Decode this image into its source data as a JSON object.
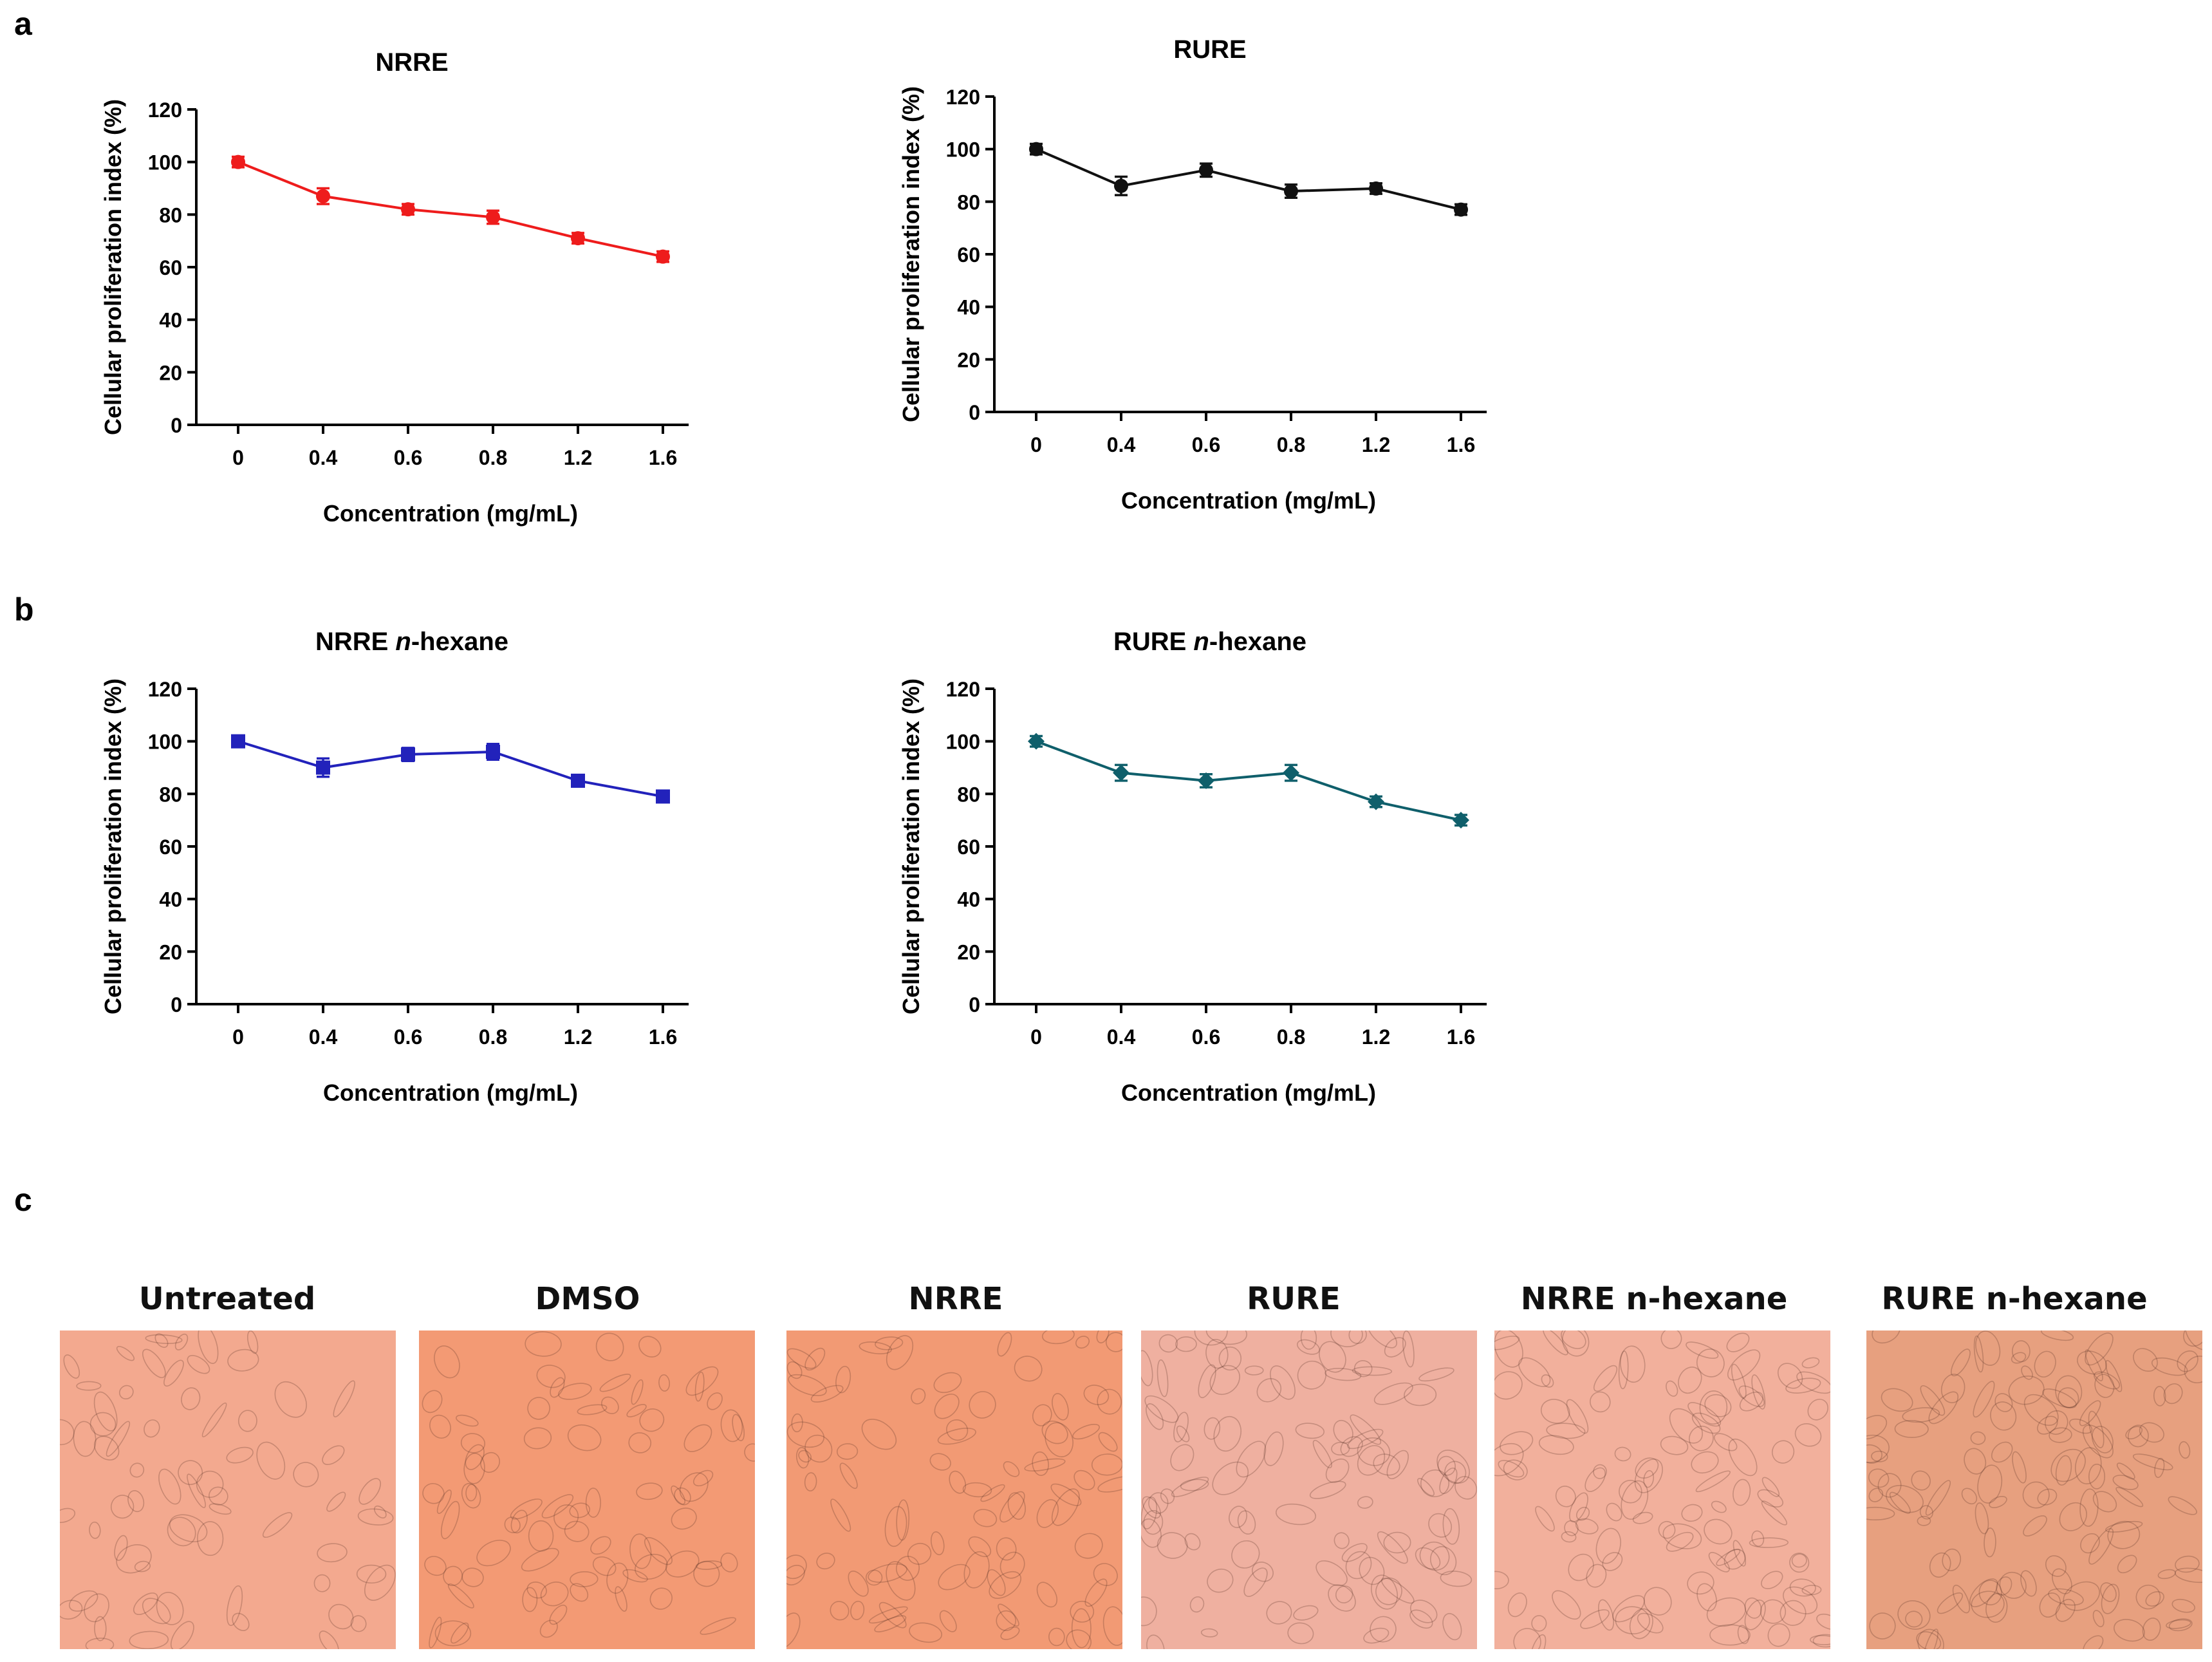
{
  "panel_labels": {
    "a": "a",
    "b": "b",
    "c": "c"
  },
  "chart_data": [
    {
      "type": "line",
      "title": "NRRE",
      "title_italic_part": "",
      "xlabel": "Concentration (mg/mL)",
      "ylabel": "Cellular proliferation index (%)",
      "categories": [
        "0",
        "0.4",
        "0.6",
        "0.8",
        "1.2",
        "1.6"
      ],
      "values": [
        100,
        87,
        82,
        79,
        71,
        64
      ],
      "errors": [
        2,
        3,
        2,
        2.5,
        2,
        2
      ],
      "ylim": [
        0,
        120
      ],
      "yticks": [
        "0",
        "20",
        "40",
        "60",
        "80",
        "100",
        "120"
      ],
      "color": "#ee1c1c",
      "marker": "circle",
      "grid": false
    },
    {
      "type": "line",
      "title": "RURE",
      "title_italic_part": "",
      "xlabel": "Concentration (mg/mL)",
      "ylabel": "Cellular proliferation index (%)",
      "categories": [
        "0",
        "0.4",
        "0.6",
        "0.8",
        "1.2",
        "1.6"
      ],
      "values": [
        100,
        86,
        92,
        84,
        85,
        77
      ],
      "errors": [
        2,
        3.5,
        2.5,
        2.5,
        2,
        2
      ],
      "ylim": [
        0,
        120
      ],
      "yticks": [
        "0",
        "20",
        "40",
        "60",
        "80",
        "100",
        "120"
      ],
      "color": "#111111",
      "marker": "circle",
      "grid": false
    },
    {
      "type": "line",
      "title": "NRRE ",
      "title_italic_part": "n",
      "title_suffix": "-hexane",
      "xlabel": "Concentration (mg/mL)",
      "ylabel": "Cellular proliferation index (%)",
      "categories": [
        "0",
        "0.4",
        "0.6",
        "0.8",
        "1.2",
        "1.6"
      ],
      "values": [
        100,
        90,
        95,
        96,
        85,
        79
      ],
      "errors": [
        2,
        3.5,
        2.5,
        3,
        2,
        2
      ],
      "ylim": [
        0,
        120
      ],
      "yticks": [
        "0",
        "20",
        "40",
        "60",
        "80",
        "100",
        "120"
      ],
      "color": "#2222bb",
      "marker": "square",
      "grid": false
    },
    {
      "type": "line",
      "title": "RURE ",
      "title_italic_part": "n",
      "title_suffix": "-hexane",
      "xlabel": "Concentration (mg/mL)",
      "ylabel": "Cellular proliferation index (%)",
      "categories": [
        "0",
        "0.4",
        "0.6",
        "0.8",
        "1.2",
        "1.6"
      ],
      "values": [
        100,
        88,
        85,
        88,
        77,
        70
      ],
      "errors": [
        2,
        3,
        2.5,
        3,
        2,
        2
      ],
      "ylim": [
        0,
        120
      ],
      "yticks": [
        "0",
        "20",
        "40",
        "60",
        "80",
        "100",
        "120"
      ],
      "color": "#0f5f6b",
      "marker": "diamond",
      "grid": false
    }
  ],
  "micrographs": [
    {
      "title": "Untreated",
      "bg": "#f3a98f"
    },
    {
      "title": "DMSO",
      "bg": "#f39a74"
    },
    {
      "title": "NRRE",
      "bg": "#f29a74"
    },
    {
      "title": "RURE",
      "bg": "#efb0a0"
    },
    {
      "title": "NRRE n-hexane",
      "bg": "#f2b09c"
    },
    {
      "title": "RURE n-hexane",
      "bg": "#e7a07f"
    }
  ]
}
